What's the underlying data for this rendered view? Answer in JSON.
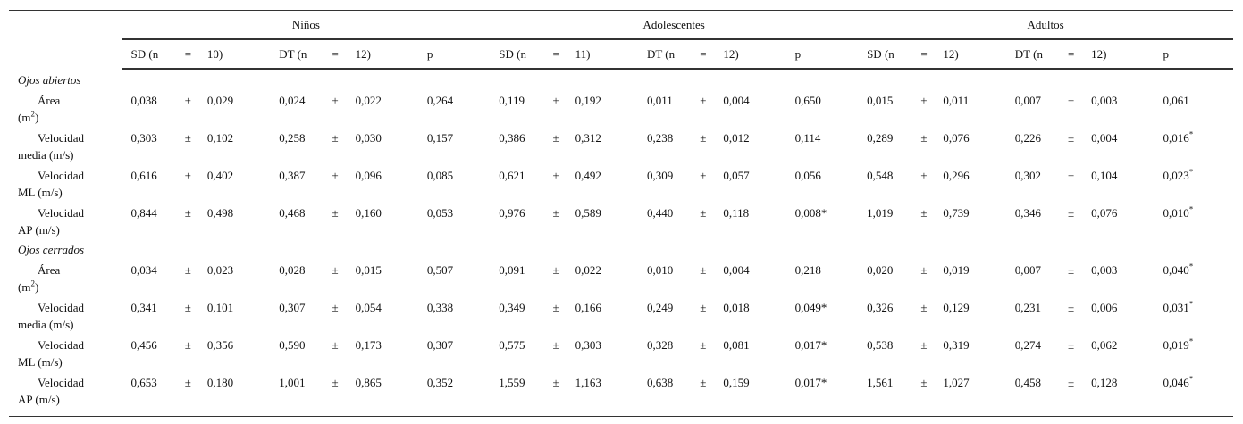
{
  "pm": "±",
  "groups": [
    {
      "name": "Niños",
      "sd": [
        "SD (n",
        "=",
        "10)"
      ],
      "dt": [
        "DT (n",
        "=",
        "12)"
      ],
      "p": "p"
    },
    {
      "name": "Adolescentes",
      "sd": [
        "SD (n",
        "=",
        "11)"
      ],
      "dt": [
        "DT (n",
        "=",
        "12)"
      ],
      "p": "p"
    },
    {
      "name": "Adultos",
      "sd": [
        "SD (n",
        "=",
        "12)"
      ],
      "dt": [
        "DT (n",
        "=",
        "12)"
      ],
      "p": "p"
    }
  ],
  "sections": [
    {
      "title": "Ojos abiertos",
      "rows": [
        {
          "label": {
            "line1": "Área",
            "line2": "(m",
            "sup": "2",
            "close": ")"
          },
          "values": [
            "0,038",
            "0,029",
            "0,024",
            "0,022",
            "0,264",
            "0,119",
            "0,192",
            "0,011",
            "0,004",
            "0,650",
            "0,015",
            "0,011",
            "0,007",
            "0,003",
            "0,061"
          ]
        },
        {
          "label": {
            "line1": "Velocidad",
            "line2": "media (m/s)"
          },
          "values": [
            "0,303",
            "0,102",
            "0,258",
            "0,030",
            "0,157",
            "0,386",
            "0,312",
            "0,238",
            "0,012",
            "0,114",
            "0,289",
            "0,076",
            "0,226",
            "0,004",
            {
              "text": "0,016",
              "sup": "*"
            }
          ]
        },
        {
          "label": {
            "line1": "Velocidad",
            "line2": "ML (m/s)"
          },
          "values": [
            "0,616",
            "0,402",
            "0,387",
            "0,096",
            "0,085",
            "0,621",
            "0,492",
            "0,309",
            "0,057",
            "0,056",
            "0,548",
            "0,296",
            "0,302",
            "0,104",
            {
              "text": "0,023",
              "sup": "*"
            }
          ]
        },
        {
          "label": {
            "line1": "Velocidad",
            "line2": "AP (m/s)"
          },
          "values": [
            "0,844",
            "0,498",
            "0,468",
            "0,160",
            "0,053",
            "0,976",
            "0,589",
            "0,440",
            "0,118",
            "0,008*",
            "1,019",
            "0,739",
            "0,346",
            "0,076",
            {
              "text": "0,010",
              "sup": "*"
            }
          ]
        }
      ]
    },
    {
      "title": "Ojos cerrados",
      "rows": [
        {
          "label": {
            "line1": "Área",
            "line2": "(m",
            "sup": "2",
            "close": ")"
          },
          "values": [
            "0,034",
            "0,023",
            "0,028",
            "0,015",
            "0,507",
            "0,091",
            "0,022",
            "0,010",
            "0,004",
            "0,218",
            "0,020",
            "0,019",
            "0,007",
            "0,003",
            {
              "text": "0,040",
              "sup": "*"
            }
          ]
        },
        {
          "label": {
            "line1": "Velocidad",
            "line2": "media (m/s)"
          },
          "values": [
            "0,341",
            "0,101",
            "0,307",
            "0,054",
            "0,338",
            "0,349",
            "0,166",
            "0,249",
            "0,018",
            "0,049*",
            "0,326",
            "0,129",
            "0,231",
            "0,006",
            {
              "text": "0,031",
              "sup": "*"
            }
          ]
        },
        {
          "label": {
            "line1": "Velocidad",
            "line2": "ML (m/s)"
          },
          "values": [
            "0,456",
            "0,356",
            "0,590",
            "0,173",
            "0,307",
            "0,575",
            "0,303",
            "0,328",
            "0,081",
            "0,017*",
            "0,538",
            "0,319",
            "0,274",
            "0,062",
            {
              "text": "0,019",
              "sup": "*"
            }
          ]
        },
        {
          "label": {
            "line1": "Velocidad",
            "line2": "AP (m/s)"
          },
          "values": [
            "0,653",
            "0,180",
            "1,001",
            "0,865",
            "0,352",
            "1,559",
            "1,163",
            "0,638",
            "0,159",
            "0,017*",
            "1,561",
            "1,027",
            "0,458",
            "0,128",
            {
              "text": "0,046",
              "sup": "*"
            }
          ]
        }
      ]
    }
  ]
}
